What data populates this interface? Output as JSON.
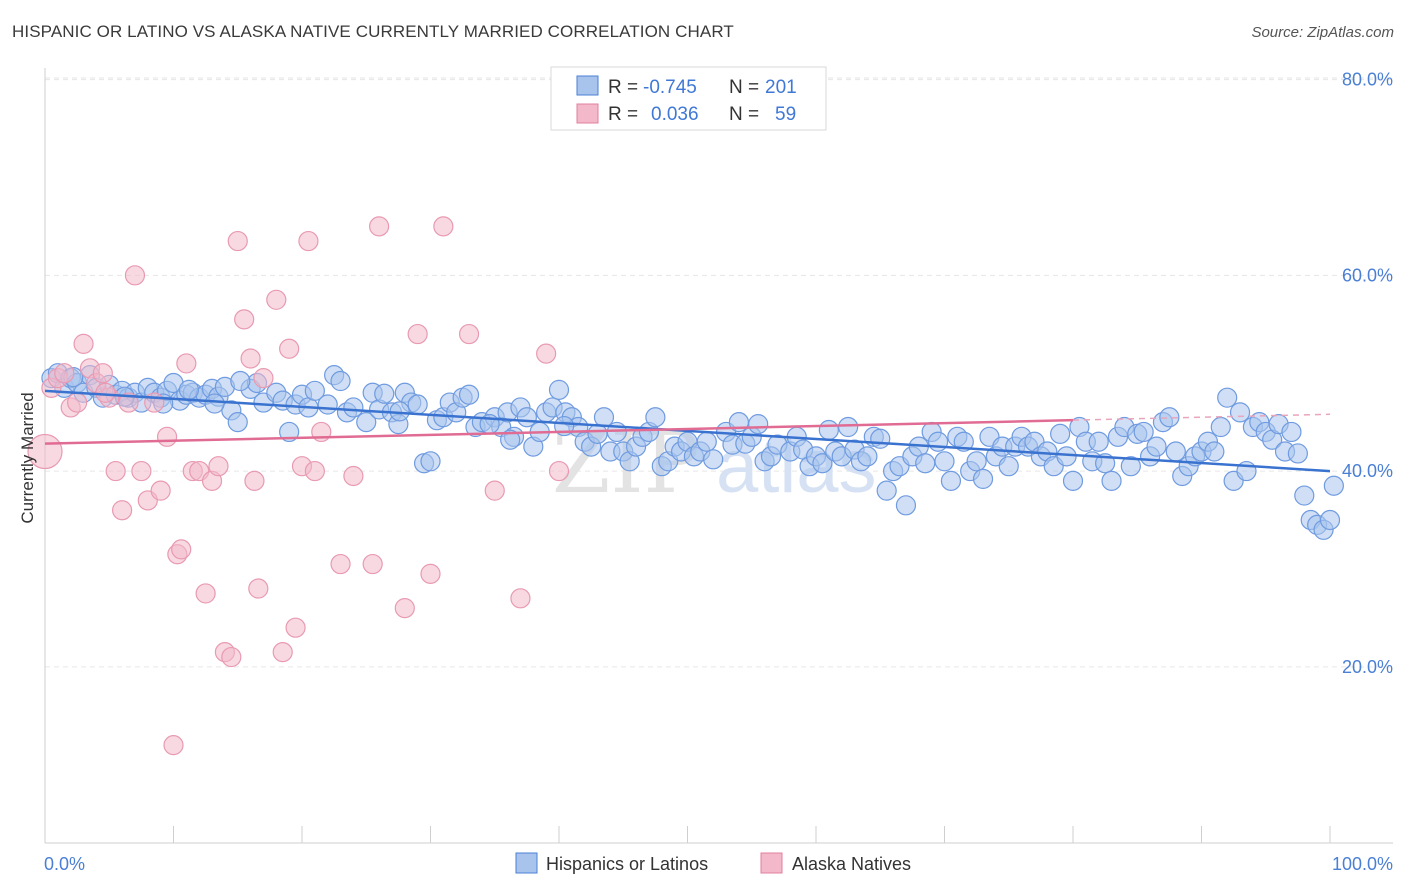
{
  "title": "HISPANIC OR LATINO VS ALASKA NATIVE CURRENTLY MARRIED CORRELATION CHART",
  "source": "Source: ZipAtlas.com",
  "watermark": {
    "a": "ZIP",
    "b": "atlas"
  },
  "colors": {
    "blue": "#4a7fd4",
    "pink": "#e0809c",
    "blue_fill": "#a9c4ec",
    "pink_fill": "#f3b9cb"
  },
  "chart_data": {
    "type": "scatter",
    "title": "HISPANIC OR LATINO VS ALASKA NATIVE CURRENTLY MARRIED CORRELATION CHART",
    "xlabel": "",
    "ylabel": "Currently Married",
    "xlim": [
      0,
      100
    ],
    "ylim": [
      2,
      82
    ],
    "x_tick_labels": [
      "0.0%",
      "100.0%"
    ],
    "y_ticks": [
      20,
      40,
      60,
      80
    ],
    "y_tick_labels": [
      "20.0%",
      "40.0%",
      "60.0%",
      "80.0%"
    ],
    "grid": true,
    "legend_placement": "top-center",
    "stats": [
      {
        "r_label": "R =",
        "r": "-0.745",
        "n_label": "N =",
        "n": "201"
      },
      {
        "r_label": "R =",
        "r": "0.036",
        "n_label": "N =",
        "n": "59"
      }
    ],
    "series": [
      {
        "name": "Hispanics or Latinos",
        "color": "#4a7fd4",
        "trend": {
          "x": [
            0,
            100
          ],
          "y": [
            48.2,
            40.0
          ]
        },
        "points": [
          [
            0.5,
            49.5
          ],
          [
            1,
            50
          ],
          [
            1.5,
            48.5
          ],
          [
            2,
            49.5
          ],
          [
            2.5,
            49
          ],
          [
            3,
            48
          ],
          [
            3.5,
            49.8
          ],
          [
            4,
            48.5
          ],
          [
            4.5,
            47.5
          ],
          [
            5,
            48.8
          ],
          [
            5.5,
            47.8
          ],
          [
            6,
            48.2
          ],
          [
            6.5,
            47.5
          ],
          [
            7,
            48
          ],
          [
            7.5,
            47
          ],
          [
            8,
            48.5
          ],
          [
            8.5,
            48
          ],
          [
            9,
            47.5
          ],
          [
            9.5,
            48.2
          ],
          [
            10,
            49
          ],
          [
            10.5,
            47.2
          ],
          [
            11,
            47.8
          ],
          [
            11.5,
            48
          ],
          [
            12,
            47.5
          ],
          [
            12.5,
            47.8
          ],
          [
            13,
            48.4
          ],
          [
            13.5,
            47.6
          ],
          [
            14,
            48.6
          ],
          [
            14.5,
            46.2
          ],
          [
            15,
            45
          ],
          [
            16,
            48.4
          ],
          [
            16.5,
            49
          ],
          [
            17,
            47
          ],
          [
            18,
            48
          ],
          [
            18.5,
            47.2
          ],
          [
            19,
            44
          ],
          [
            19.5,
            46.8
          ],
          [
            20,
            47.8
          ],
          [
            20.5,
            46.5
          ],
          [
            21,
            48.2
          ],
          [
            22,
            46.8
          ],
          [
            22.5,
            49.8
          ],
          [
            23,
            49.2
          ],
          [
            23.5,
            46
          ],
          [
            24,
            46.5
          ],
          [
            25,
            45
          ],
          [
            25.5,
            48
          ],
          [
            26,
            46.3
          ],
          [
            27,
            46
          ],
          [
            27.5,
            44.8
          ],
          [
            28,
            48
          ],
          [
            28.5,
            47
          ],
          [
            29,
            46.8
          ],
          [
            29.5,
            40.8
          ],
          [
            30,
            41
          ],
          [
            30.5,
            45.2
          ],
          [
            31,
            45.5
          ],
          [
            31.5,
            47
          ],
          [
            32,
            46
          ],
          [
            32.5,
            47.5
          ],
          [
            33,
            47.8
          ],
          [
            33.5,
            44.5
          ],
          [
            34,
            45
          ],
          [
            35,
            45.5
          ],
          [
            35.5,
            44.5
          ],
          [
            36,
            46
          ],
          [
            36.5,
            43.5
          ],
          [
            37,
            46.5
          ],
          [
            37.5,
            45.5
          ],
          [
            38,
            42.5
          ],
          [
            38.5,
            44
          ],
          [
            39,
            46
          ],
          [
            39.5,
            46.5
          ],
          [
            40,
            48.3
          ],
          [
            40.5,
            46
          ],
          [
            41,
            45.5
          ],
          [
            41.5,
            44.5
          ],
          [
            42,
            43
          ],
          [
            42.5,
            42.5
          ],
          [
            43,
            43.8
          ],
          [
            43.5,
            45.5
          ],
          [
            44,
            42
          ],
          [
            44.5,
            44
          ],
          [
            45,
            42
          ],
          [
            45.5,
            41
          ],
          [
            46,
            42.5
          ],
          [
            46.5,
            43.5
          ],
          [
            47,
            44
          ],
          [
            47.5,
            45.5
          ],
          [
            48,
            40.5
          ],
          [
            48.5,
            41
          ],
          [
            49,
            42.5
          ],
          [
            49.5,
            42
          ],
          [
            50,
            43
          ],
          [
            50.5,
            41.5
          ],
          [
            51,
            42
          ],
          [
            51.5,
            43
          ],
          [
            52,
            41.2
          ],
          [
            53,
            44
          ],
          [
            53.5,
            42.7
          ],
          [
            54,
            45
          ],
          [
            54.5,
            42.8
          ],
          [
            55,
            43.5
          ],
          [
            55.5,
            44.8
          ],
          [
            56,
            41
          ],
          [
            56.5,
            41.5
          ],
          [
            57,
            42.7
          ],
          [
            58,
            42
          ],
          [
            58.5,
            43.5
          ],
          [
            59,
            42.2
          ],
          [
            59.5,
            40.5
          ],
          [
            60,
            41.5
          ],
          [
            60.5,
            40.8
          ],
          [
            61,
            44.2
          ],
          [
            61.5,
            42
          ],
          [
            62,
            41.5
          ],
          [
            62.5,
            44.5
          ],
          [
            63,
            42.2
          ],
          [
            63.5,
            41
          ],
          [
            64,
            41.5
          ],
          [
            64.5,
            43.5
          ],
          [
            65,
            43.3
          ],
          [
            65.5,
            38
          ],
          [
            66,
            40
          ],
          [
            66.5,
            40.5
          ],
          [
            67,
            36.5
          ],
          [
            67.5,
            41.5
          ],
          [
            68,
            42.5
          ],
          [
            68.5,
            40.8
          ],
          [
            69,
            44
          ],
          [
            69.5,
            43
          ],
          [
            70,
            41
          ],
          [
            70.5,
            39
          ],
          [
            71,
            43.5
          ],
          [
            71.5,
            43
          ],
          [
            72,
            40
          ],
          [
            72.5,
            41
          ],
          [
            73,
            39.2
          ],
          [
            73.5,
            43.5
          ],
          [
            74,
            41.5
          ],
          [
            74.5,
            42.5
          ],
          [
            75,
            40.5
          ],
          [
            75.5,
            42.5
          ],
          [
            76,
            43.5
          ],
          [
            76.5,
            42.5
          ],
          [
            77,
            43
          ],
          [
            77.5,
            41.5
          ],
          [
            78,
            42
          ],
          [
            78.5,
            40.5
          ],
          [
            79,
            43.8
          ],
          [
            79.5,
            41.5
          ],
          [
            80,
            39
          ],
          [
            80.5,
            44.5
          ],
          [
            81,
            43
          ],
          [
            81.5,
            41
          ],
          [
            82,
            43
          ],
          [
            82.5,
            40.8
          ],
          [
            83,
            39
          ],
          [
            83.5,
            43.5
          ],
          [
            84,
            44.5
          ],
          [
            84.5,
            40.5
          ],
          [
            85,
            43.8
          ],
          [
            85.5,
            44
          ],
          [
            86,
            41.5
          ],
          [
            86.5,
            42.5
          ],
          [
            87,
            45
          ],
          [
            87.5,
            45.5
          ],
          [
            88,
            42
          ],
          [
            88.5,
            39.5
          ],
          [
            89,
            40.5
          ],
          [
            89.5,
            41.5
          ],
          [
            90,
            42
          ],
          [
            90.5,
            43
          ],
          [
            91,
            42
          ],
          [
            91.5,
            44.5
          ],
          [
            92,
            47.5
          ],
          [
            92.5,
            39
          ],
          [
            93,
            46
          ],
          [
            93.5,
            40
          ],
          [
            94,
            44.5
          ],
          [
            94.5,
            45
          ],
          [
            95,
            44
          ],
          [
            95.5,
            43.2
          ],
          [
            96,
            44.8
          ],
          [
            96.5,
            42
          ],
          [
            97,
            44
          ],
          [
            97.5,
            41.8
          ],
          [
            98,
            37.5
          ],
          [
            98.5,
            35
          ],
          [
            99,
            34.5
          ],
          [
            99.5,
            34
          ],
          [
            100,
            35
          ],
          [
            100.3,
            38.5
          ],
          [
            2.2,
            49.6
          ],
          [
            6.2,
            47.6
          ],
          [
            9.2,
            46.9
          ],
          [
            11.2,
            48.3
          ],
          [
            13.2,
            46.9
          ],
          [
            15.2,
            49.2
          ],
          [
            26.4,
            47.9
          ],
          [
            27.6,
            46.1
          ],
          [
            34.6,
            44.8
          ],
          [
            36.2,
            43.2
          ],
          [
            40.4,
            44.6
          ]
        ]
      },
      {
        "name": "Alaska Natives",
        "color": "#e0809c",
        "trend": {
          "x": [
            0,
            80
          ],
          "y": [
            42.8,
            45.2
          ]
        },
        "points": [
          [
            0,
            42
          ],
          [
            0.5,
            48.5
          ],
          [
            1,
            49.5
          ],
          [
            1.5,
            50
          ],
          [
            2,
            46.5
          ],
          [
            2.5,
            47
          ],
          [
            3,
            53
          ],
          [
            3.5,
            50.5
          ],
          [
            4,
            49
          ],
          [
            4.5,
            50
          ],
          [
            5,
            47.5
          ],
          [
            4.7,
            48
          ],
          [
            5.5,
            40
          ],
          [
            6,
            36
          ],
          [
            6.5,
            47
          ],
          [
            7,
            60
          ],
          [
            7.5,
            40
          ],
          [
            8,
            37
          ],
          [
            8.5,
            47
          ],
          [
            9,
            38
          ],
          [
            9.5,
            43.5
          ],
          [
            10,
            12
          ],
          [
            10.3,
            31.5
          ],
          [
            10.6,
            32
          ],
          [
            11,
            51
          ],
          [
            11.5,
            40
          ],
          [
            12,
            40
          ],
          [
            12.5,
            27.5
          ],
          [
            13,
            39
          ],
          [
            13.5,
            40.5
          ],
          [
            14,
            21.5
          ],
          [
            14.5,
            21
          ],
          [
            15,
            63.5
          ],
          [
            15.5,
            55.5
          ],
          [
            16,
            51.5
          ],
          [
            16.3,
            39
          ],
          [
            16.6,
            28
          ],
          [
            17,
            49.5
          ],
          [
            18,
            57.5
          ],
          [
            18.5,
            21.5
          ],
          [
            19,
            52.5
          ],
          [
            19.5,
            24
          ],
          [
            20,
            40.5
          ],
          [
            20.5,
            63.5
          ],
          [
            21,
            40
          ],
          [
            21.5,
            44
          ],
          [
            23,
            30.5
          ],
          [
            24,
            39.5
          ],
          [
            25.5,
            30.5
          ],
          [
            26,
            65
          ],
          [
            28,
            26
          ],
          [
            29,
            54
          ],
          [
            30,
            29.5
          ],
          [
            31,
            65
          ],
          [
            33,
            54
          ],
          [
            35,
            38
          ],
          [
            37,
            27
          ],
          [
            39,
            52
          ],
          [
            40,
            40
          ]
        ]
      }
    ]
  },
  "bottom_legend": {
    "a": "Hispanics or Latinos",
    "b": "Alaska Natives"
  }
}
